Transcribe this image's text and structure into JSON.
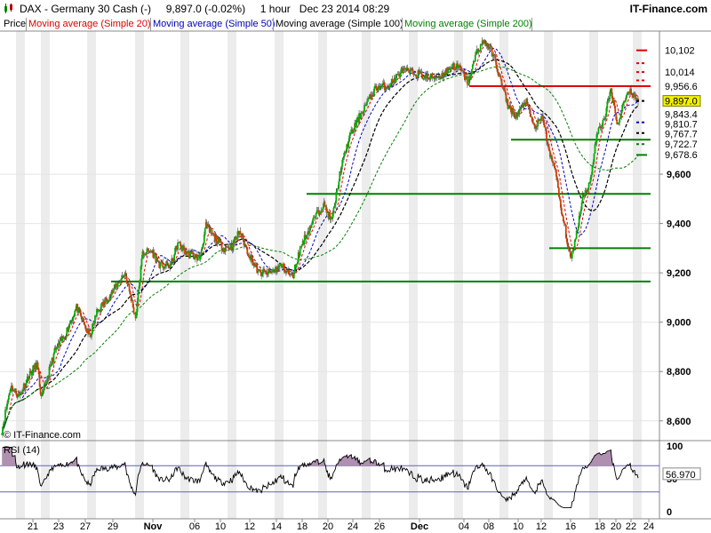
{
  "header": {
    "title": "DAX - Germany 30 Cash (-)     9,897.0 (-0.02%)     1 hour   Dec 23 2014 08:29",
    "brand": "IT-Finance.com",
    "logo_icon": "candlestick-icon"
  },
  "legend": [
    {
      "label": "Price",
      "color": "#000000"
    },
    {
      "label": "Moving average (Simple 20)",
      "color": "#e00000"
    },
    {
      "label": "Moving average (Simple 50)",
      "color": "#0000c0"
    },
    {
      "label": "Moving average (Simple 100)",
      "color": "#000000"
    },
    {
      "label": "Moving average (Simple 200)",
      "color": "#008000"
    }
  ],
  "copyright": "© IT-Finance.com",
  "rsi_label": "RSI (14)",
  "chart_data": {
    "type": "candlestick",
    "x_tick_labels": [
      "21",
      "23",
      "27",
      "29",
      "Nov",
      "06",
      "10",
      "12",
      "14",
      "18",
      "20",
      "24",
      "26",
      "Dec",
      "04",
      "08",
      "10",
      "12",
      "16",
      "18",
      "20",
      "22",
      "24"
    ],
    "y_ticks": [
      8600,
      8800,
      9000,
      9200,
      9400,
      9600
    ],
    "y_range": [
      8520,
      10180
    ],
    "price_anchors": [
      [
        0,
        8560
      ],
      [
        10,
        8740
      ],
      [
        20,
        8700
      ],
      [
        30,
        8780
      ],
      [
        40,
        8830
      ],
      [
        45,
        8690
      ],
      [
        60,
        8880
      ],
      [
        72,
        8950
      ],
      [
        85,
        9060
      ],
      [
        100,
        8940
      ],
      [
        108,
        9040
      ],
      [
        125,
        9120
      ],
      [
        140,
        9200
      ],
      [
        152,
        9020
      ],
      [
        160,
        9280
      ],
      [
        170,
        9290
      ],
      [
        180,
        9230
      ],
      [
        192,
        9230
      ],
      [
        200,
        9320
      ],
      [
        210,
        9280
      ],
      [
        225,
        9260
      ],
      [
        232,
        9390
      ],
      [
        240,
        9350
      ],
      [
        252,
        9300
      ],
      [
        262,
        9310
      ],
      [
        270,
        9370
      ],
      [
        280,
        9280
      ],
      [
        292,
        9200
      ],
      [
        305,
        9200
      ],
      [
        318,
        9230
      ],
      [
        330,
        9180
      ],
      [
        340,
        9310
      ],
      [
        355,
        9420
      ],
      [
        365,
        9480
      ],
      [
        375,
        9410
      ],
      [
        385,
        9620
      ],
      [
        395,
        9750
      ],
      [
        410,
        9860
      ],
      [
        425,
        9950
      ],
      [
        440,
        9960
      ],
      [
        455,
        10020
      ],
      [
        470,
        10010
      ],
      [
        485,
        9990
      ],
      [
        500,
        10000
      ],
      [
        512,
        10040
      ],
      [
        520,
        10030
      ],
      [
        530,
        9970
      ],
      [
        540,
        10100
      ],
      [
        548,
        10140
      ],
      [
        558,
        10090
      ],
      [
        565,
        10000
      ],
      [
        575,
        9880
      ],
      [
        585,
        9830
      ],
      [
        595,
        9900
      ],
      [
        605,
        9790
      ],
      [
        615,
        9830
      ],
      [
        622,
        9680
      ],
      [
        628,
        9640
      ],
      [
        635,
        9460
      ],
      [
        640,
        9380
      ],
      [
        646,
        9250
      ],
      [
        652,
        9340
      ],
      [
        660,
        9510
      ],
      [
        668,
        9560
      ],
      [
        676,
        9760
      ],
      [
        684,
        9820
      ],
      [
        692,
        9940
      ],
      [
        700,
        9800
      ],
      [
        708,
        9910
      ],
      [
        714,
        9940
      ],
      [
        718,
        9920
      ],
      [
        723,
        9897
      ]
    ],
    "last_price": 9897.0,
    "change_pct": -0.02,
    "series": [
      {
        "name": "Moving average (Simple 20)",
        "period": 20,
        "color": "#e00000",
        "last": 9843.4
      },
      {
        "name": "Moving average (Simple 50)",
        "period": 50,
        "color": "#0000c0",
        "last": 9810.7
      },
      {
        "name": "Moving average (Simple 100)",
        "period": 100,
        "color": "#000000",
        "last": 9767.7
      },
      {
        "name": "Moving average (Simple 200)",
        "period": 200,
        "color": "#008000",
        "last": 9722.7
      }
    ],
    "price_labels": [
      {
        "value": 10102,
        "text": "10,102",
        "color": "#e00000"
      },
      {
        "value": 10014,
        "text": "10,014",
        "color": "#e00000"
      },
      {
        "value": 9956.6,
        "text": "9,956.6",
        "color": "#e00000"
      },
      {
        "value": 9897.0,
        "text": "9,897.0",
        "color": "#000000",
        "bg": "#f0f000"
      },
      {
        "value": 9843.4,
        "text": "9,843.4",
        "color": "#0000c0"
      },
      {
        "value": 9810.7,
        "text": "9,810.7",
        "color": "#008000"
      },
      {
        "value": 9767.7,
        "text": "9,767.7",
        "color": "#000000"
      },
      {
        "value": 9722.7,
        "text": "9,722.7",
        "color": "#008000"
      },
      {
        "value": 9678.6,
        "text": "9,678.6",
        "color": "#008000"
      }
    ],
    "right_markers": [
      {
        "value": 10102,
        "color": "#e00000",
        "style": "solid"
      },
      {
        "value": 10050,
        "color": "#e00000",
        "style": "dashed"
      },
      {
        "value": 10014,
        "color": "#e00000",
        "style": "dashed"
      },
      {
        "value": 9980,
        "color": "#e00000",
        "style": "dashed"
      },
      {
        "value": 9897,
        "color": "#000000",
        "style": "dashed"
      },
      {
        "value": 9810,
        "color": "#0000c0",
        "style": "dashed"
      },
      {
        "value": 9767,
        "color": "#000000",
        "style": "dashed"
      },
      {
        "value": 9722,
        "color": "#008000",
        "style": "dashed"
      },
      {
        "value": 9678,
        "color": "#008000",
        "style": "solid"
      }
    ],
    "resistance_lines": [
      {
        "value": 9956.6,
        "color": "#e00000"
      }
    ],
    "support_lines": [
      {
        "value": 9740,
        "color": "#008000"
      },
      {
        "value": 9520,
        "color": "#008000"
      },
      {
        "value": 9300,
        "color": "#008000"
      },
      {
        "value": 9165,
        "color": "#008000"
      }
    ],
    "rsi": {
      "period": 14,
      "value": 56.97,
      "value_text": "56.970",
      "y_ticks": [
        0,
        50,
        100
      ],
      "overbought": 70,
      "oversold": 30,
      "colors": {
        "line": "#000000",
        "band": "#6060c0",
        "fill": "#b090b0"
      }
    }
  }
}
